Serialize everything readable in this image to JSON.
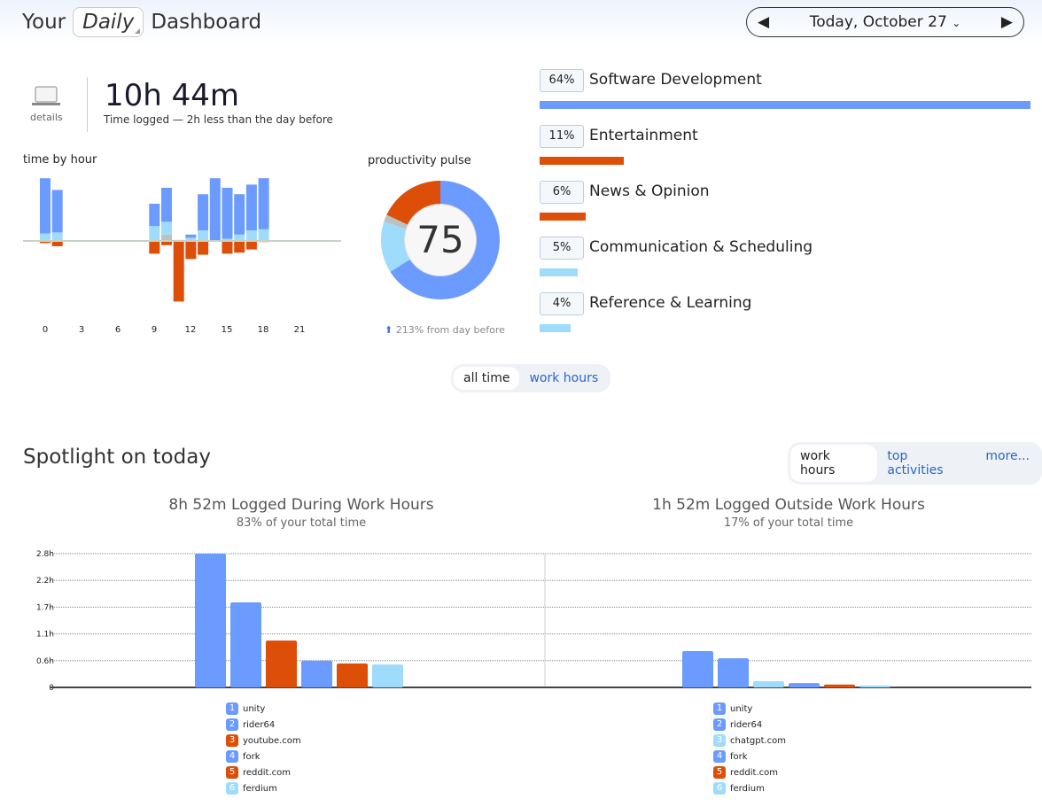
{
  "header": {
    "your": "Your",
    "period": "Daily",
    "dashboard": "Dashboard",
    "date": "Today, October 27"
  },
  "summary": {
    "details": "details",
    "time": "10h 44m",
    "note": "Time logged — 2h less than the day before"
  },
  "time_by_hour": {
    "title": "time by hour",
    "ticks": [
      "0",
      "3",
      "6",
      "9",
      "12",
      "15",
      "18",
      "21"
    ],
    "hours": [
      {
        "h": 0,
        "productive": 52,
        "neutral": 7,
        "other": 0,
        "distracting": 2
      },
      {
        "h": 1,
        "productive": 40,
        "neutral": 8,
        "other": 0,
        "distracting": 5
      },
      {
        "h": 9,
        "productive": 21,
        "neutral": 14,
        "other": 0,
        "distracting": 12
      },
      {
        "h": 10,
        "productive": 32,
        "neutral": 12,
        "other": 6,
        "distracting": 4
      },
      {
        "h": 11,
        "productive": 0,
        "neutral": 1,
        "other": 0,
        "distracting": 57
      },
      {
        "h": 12,
        "productive": 3,
        "neutral": 3,
        "other": 0,
        "distracting": 17
      },
      {
        "h": 13,
        "productive": 34,
        "neutral": 10,
        "other": 0,
        "distracting": 13
      },
      {
        "h": 14,
        "productive": 59,
        "neutral": 0,
        "other": 0,
        "distracting": 0
      },
      {
        "h": 15,
        "productive": 48,
        "neutral": 2,
        "other": 0,
        "distracting": 12
      },
      {
        "h": 16,
        "productive": 38,
        "neutral": 6,
        "other": 0,
        "distracting": 11
      },
      {
        "h": 17,
        "productive": 43,
        "neutral": 10,
        "other": 0,
        "distracting": 8
      },
      {
        "h": 18,
        "productive": 48,
        "neutral": 11,
        "other": 0,
        "distracting": 1
      }
    ]
  },
  "pulse": {
    "title": "productivity pulse",
    "score": "75",
    "change": "213% from day before",
    "slices": [
      {
        "k": "productive",
        "v": 66
      },
      {
        "k": "neutral",
        "v": 14
      },
      {
        "k": "other",
        "v": 2
      },
      {
        "k": "distracting",
        "v": 18
      }
    ]
  },
  "colors": {
    "productive": "#6b9bff",
    "neutral": "#9fdcfb",
    "other": "#b9c2c0",
    "distracting": "#dd4e08"
  },
  "categories": [
    {
      "pct": "64%",
      "value": 64,
      "name": "Software Development",
      "color": "#6b9bff"
    },
    {
      "pct": "11%",
      "value": 11,
      "name": "Entertainment",
      "color": "#dd4e08"
    },
    {
      "pct": "6%",
      "value": 6,
      "name": "News & Opinion",
      "color": "#dd4e08"
    },
    {
      "pct": "5%",
      "value": 5,
      "name": "Communication & Scheduling",
      "color": "#9fdcfb"
    },
    {
      "pct": "4%",
      "value": 4,
      "name": "Reference & Learning",
      "color": "#9fdcfb"
    }
  ],
  "toggle1": {
    "all": "all time",
    "work": "work hours"
  },
  "spotlight": {
    "title": "Spotlight on today",
    "tabs": [
      "work hours",
      "top activities",
      "more..."
    ],
    "left": {
      "title": "8h 52m Logged During Work Hours",
      "sub": "83% of your total time"
    },
    "right": {
      "title": "1h 52m Logged Outside Work Hours",
      "sub": "17% of your total time"
    }
  },
  "chart_data": [
    {
      "type": "bar",
      "title": "8h 52m Logged During Work Hours",
      "yticks": [
        "0",
        "0.6h",
        "1.1h",
        "1.7h",
        "2.2h",
        "2.8h"
      ],
      "ylim": [
        0,
        2.8
      ],
      "categories": [
        "unity",
        "rider64",
        "youtube.com",
        "fork",
        "reddit.com",
        "ferdium"
      ],
      "values": [
        2.8,
        1.78,
        0.98,
        0.56,
        0.5,
        0.48
      ],
      "colors": [
        "#6b9bff",
        "#6b9bff",
        "#dd4e08",
        "#6b9bff",
        "#dd4e08",
        "#9fdcfb"
      ]
    },
    {
      "type": "bar",
      "title": "1h 52m Logged Outside Work Hours",
      "ylim": [
        0,
        2.8
      ],
      "categories": [
        "unity",
        "rider64",
        "chatgpt.com",
        "fork",
        "reddit.com",
        "ferdium"
      ],
      "values": [
        0.76,
        0.61,
        0.13,
        0.09,
        0.06,
        0.04
      ],
      "colors": [
        "#6b9bff",
        "#6b9bff",
        "#9fdcfb",
        "#6b9bff",
        "#dd4e08",
        "#9fdcfb"
      ]
    }
  ]
}
